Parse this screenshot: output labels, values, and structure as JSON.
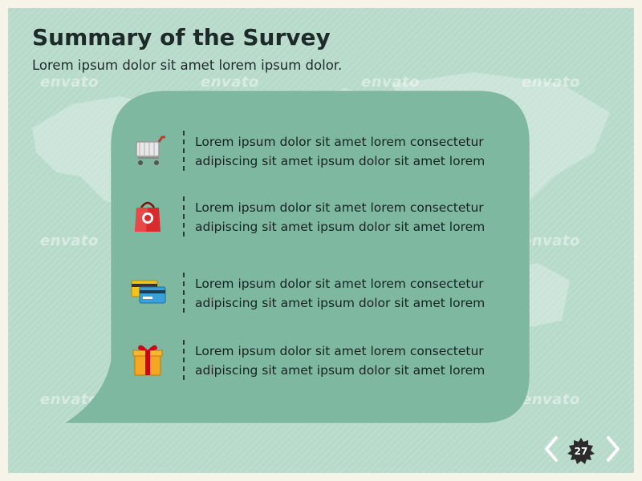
{
  "slide": {
    "title": "Summary of the Survey",
    "subtitle": "Lorem ipsum dolor sit amet lorem ipsum dolor.",
    "page_number": "27",
    "watermark_text": "envato",
    "items": [
      {
        "icon": "shopping-cart-icon",
        "line1": "Lorem ipsum dolor sit amet lorem consectetur",
        "line2": "adipiscing sit amet  ipsum dolor sit amet lorem"
      },
      {
        "icon": "shopping-bag-icon",
        "line1": "Lorem ipsum dolor sit amet lorem consectetur",
        "line2": "adipiscing sit amet  ipsum dolor sit amet lorem"
      },
      {
        "icon": "credit-cards-icon",
        "line1": "Lorem ipsum dolor sit amet lorem consectetur",
        "line2": "adipiscing sit amet  ipsum dolor sit amet lorem"
      },
      {
        "icon": "gift-box-icon",
        "line1": "Lorem ipsum dolor sit amet lorem consectetur",
        "line2": "adipiscing sit amet  ipsum dolor sit amet lorem"
      }
    ]
  },
  "colors": {
    "background": "#b7dacb",
    "bubble": "#7fb8a1",
    "text": "#1e2a2a",
    "page_badge": "#2b2b2b"
  }
}
